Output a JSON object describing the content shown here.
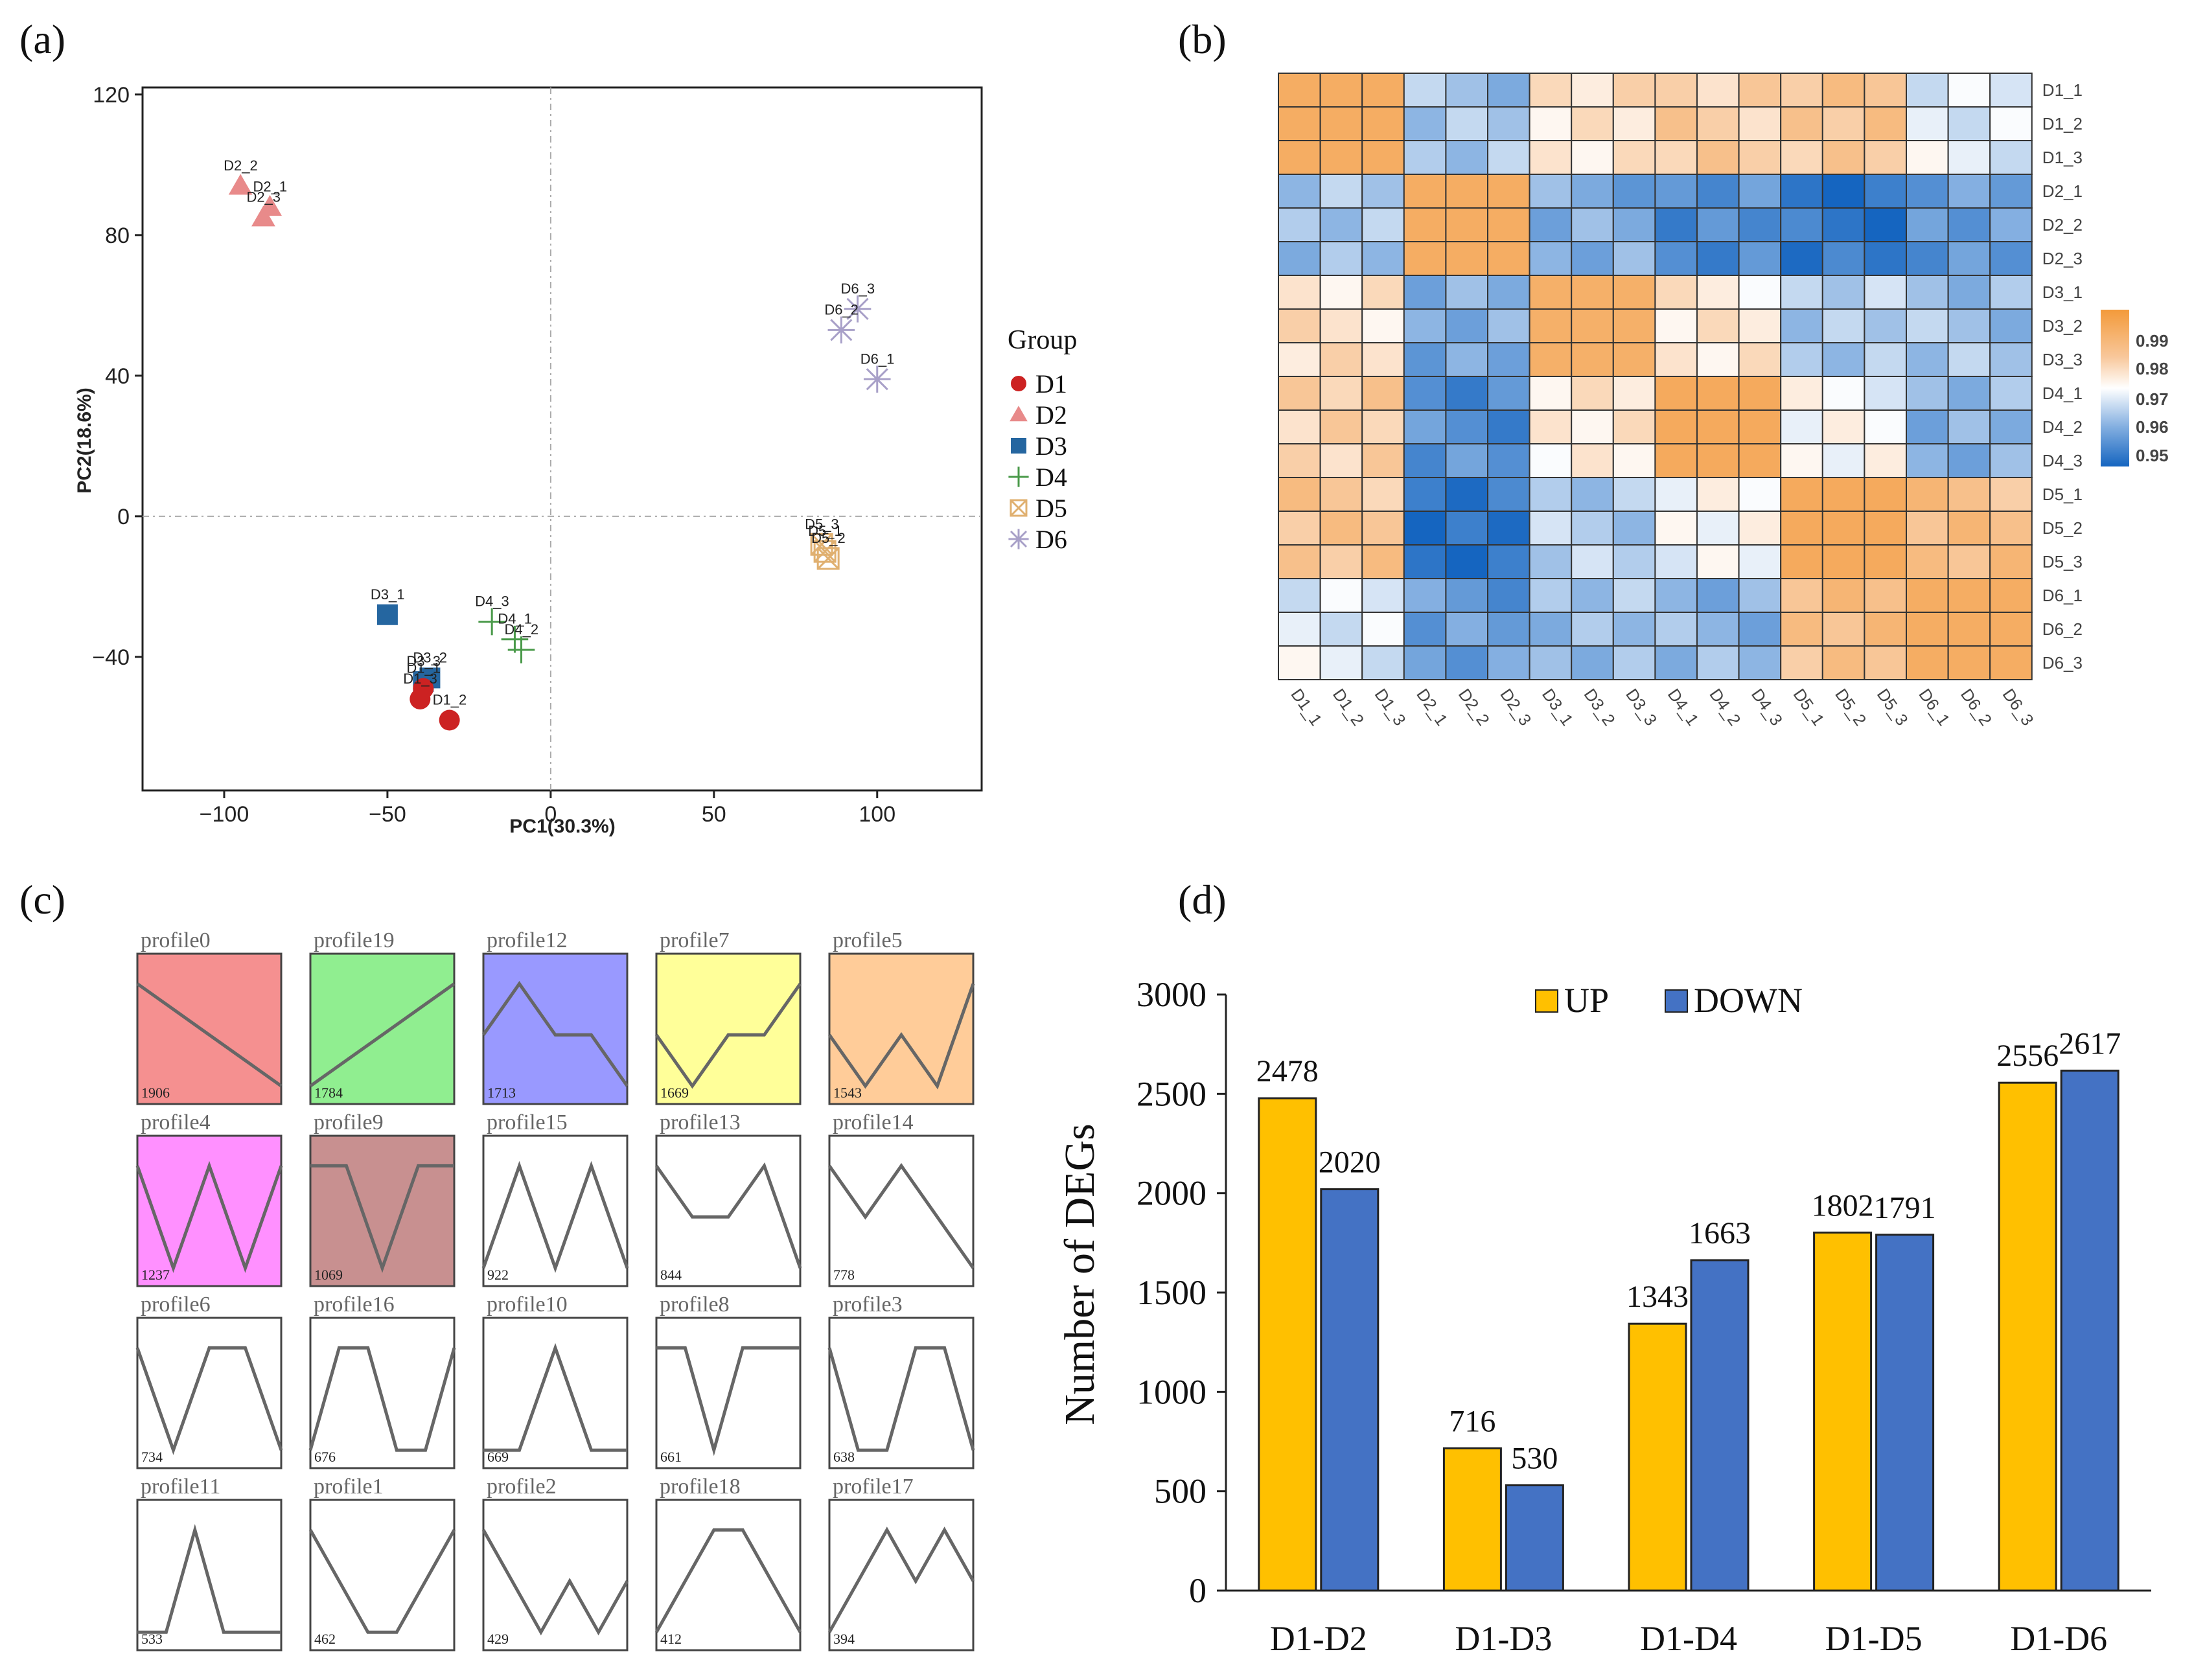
{
  "labels": {
    "a": "(a)",
    "b": "(b)",
    "c": "(c)",
    "d": "(d)"
  },
  "chart_data": [
    {
      "id": "a",
      "type": "scatter",
      "xlabel": "PC1(30.3%)",
      "ylabel": "PC2(18.6%)",
      "xlim": [
        -125,
        132
      ],
      "ylim": [
        -78,
        122
      ],
      "xticks": [
        -100,
        -50,
        0,
        50,
        100
      ],
      "yticks": [
        120,
        80,
        40,
        0,
        -40
      ],
      "xtick_labels": [
        "−100",
        "−50",
        "0",
        "50",
        "100"
      ],
      "ytick_labels": [
        "120",
        "80",
        "40",
        "0",
        "−40"
      ],
      "legend_title": "Group",
      "groups": [
        {
          "name": "D1",
          "color": "#cc2222",
          "marker": "circle"
        },
        {
          "name": "D2",
          "color": "#e88a8a",
          "marker": "triangle"
        },
        {
          "name": "D3",
          "color": "#2566a0",
          "marker": "square"
        },
        {
          "name": "D4",
          "color": "#4a9a4a",
          "marker": "plus"
        },
        {
          "name": "D5",
          "color": "#e0b070",
          "marker": "boxx"
        },
        {
          "name": "D6",
          "color": "#a8a0c8",
          "marker": "star"
        }
      ],
      "points": [
        {
          "label": "D2_2",
          "group": "D2",
          "x": -95,
          "y": 94
        },
        {
          "label": "D2_1",
          "group": "D2",
          "x": -86,
          "y": 88
        },
        {
          "label": "D2_3",
          "group": "D2",
          "x": -88,
          "y": 85
        },
        {
          "label": "D6_3",
          "group": "D6",
          "x": 94,
          "y": 59
        },
        {
          "label": "D6_2",
          "group": "D6",
          "x": 89,
          "y": 53
        },
        {
          "label": "D6_1",
          "group": "D6",
          "x": 100,
          "y": 39
        },
        {
          "label": "D5_3",
          "group": "D5",
          "x": 83,
          "y": -8
        },
        {
          "label": "D5_1",
          "group": "D5",
          "x": 84,
          "y": -10
        },
        {
          "label": "D5_2",
          "group": "D5",
          "x": 85,
          "y": -12
        },
        {
          "label": "D3_1",
          "group": "D3",
          "x": -50,
          "y": -28
        },
        {
          "label": "D4_3",
          "group": "D4",
          "x": -18,
          "y": -30
        },
        {
          "label": "D4_1",
          "group": "D4",
          "x": -11,
          "y": -35
        },
        {
          "label": "D4_2",
          "group": "D4",
          "x": -9,
          "y": -38
        },
        {
          "label": "D3_2",
          "group": "D3",
          "x": -37,
          "y": -46
        },
        {
          "label": "D3_3",
          "group": "D3",
          "x": -39,
          "y": -47
        },
        {
          "label": "D1_1",
          "group": "D1",
          "x": -39,
          "y": -49
        },
        {
          "label": "D1_3",
          "group": "D1",
          "x": -40,
          "y": -52
        },
        {
          "label": "D1_2",
          "group": "D1",
          "x": -31,
          "y": -58
        }
      ]
    },
    {
      "id": "b",
      "type": "heatmap",
      "labels": [
        "D1_1",
        "D1_2",
        "D1_3",
        "D2_1",
        "D2_2",
        "D2_3",
        "D3_1",
        "D3_2",
        "D3_3",
        "D4_1",
        "D4_2",
        "D4_3",
        "D5_1",
        "D5_2",
        "D5_3",
        "D6_1",
        "D6_2",
        "D6_3"
      ],
      "colorbar_ticks": [
        "0.99",
        "0.98",
        "0.97",
        "0.96",
        "0.95"
      ],
      "color_range": [
        0.945,
        1.0
      ],
      "block_values": [
        [
          0.993,
          0.962,
          0.978,
          0.982,
          0.984,
          0.97
        ],
        [
          0.962,
          0.993,
          0.958,
          0.953,
          0.948,
          0.955
        ],
        [
          0.978,
          0.958,
          0.992,
          0.976,
          0.964,
          0.962
        ],
        [
          0.982,
          0.953,
          0.976,
          0.994,
          0.972,
          0.96
        ],
        [
          0.984,
          0.948,
          0.964,
          0.972,
          0.994,
          0.986
        ],
        [
          0.97,
          0.955,
          0.962,
          0.96,
          0.986,
          0.993
        ]
      ]
    },
    {
      "id": "c",
      "type": "line",
      "profiles": [
        {
          "name": "profile0",
          "count": "1906",
          "color": "#f59090",
          "values": [
            2,
            1.5,
            1,
            0.5,
            0
          ]
        },
        {
          "name": "profile19",
          "count": "1784",
          "color": "#90ee90",
          "values": [
            1,
            1.5,
            2,
            2.5,
            3
          ]
        },
        {
          "name": "profile12",
          "count": "1713",
          "color": "#9999ff",
          "values": [
            2,
            3,
            2,
            2,
            1
          ]
        },
        {
          "name": "profile7",
          "count": "1669",
          "color": "#ffff99",
          "values": [
            2,
            1,
            2,
            2,
            3
          ]
        },
        {
          "name": "profile5",
          "count": "1543",
          "color": "#ffcc99",
          "values": [
            2,
            1,
            2,
            1,
            3
          ]
        },
        {
          "name": "profile4",
          "count": "1237",
          "color": "#ff90ff",
          "values": [
            1,
            0,
            1,
            0,
            1
          ]
        },
        {
          "name": "profile9",
          "count": "1069",
          "color": "#c89090",
          "values": [
            2,
            2,
            1,
            2,
            2
          ]
        },
        {
          "name": "profile15",
          "count": "922",
          "color": "#ffffff",
          "values": [
            1,
            2,
            1,
            2,
            1
          ]
        },
        {
          "name": "profile13",
          "count": "844",
          "color": "#ffffff",
          "values": [
            2,
            1.5,
            1.5,
            2,
            1
          ]
        },
        {
          "name": "profile14",
          "count": "778",
          "color": "#ffffff",
          "values": [
            3,
            2,
            3,
            2,
            1
          ]
        },
        {
          "name": "profile6",
          "count": "734",
          "color": "#ffffff",
          "values": [
            1,
            0,
            1,
            1,
            0
          ]
        },
        {
          "name": "profile16",
          "count": "676",
          "color": "#ffffff",
          "values": [
            1,
            2,
            2,
            1,
            1,
            2
          ]
        },
        {
          "name": "profile10",
          "count": "669",
          "color": "#ffffff",
          "values": [
            1,
            1,
            2,
            1,
            1
          ]
        },
        {
          "name": "profile8",
          "count": "661",
          "color": "#ffffff",
          "values": [
            1,
            1,
            0,
            1,
            1,
            1
          ]
        },
        {
          "name": "profile3",
          "count": "638",
          "color": "#ffffff",
          "values": [
            1,
            0,
            0,
            1,
            1,
            0
          ]
        },
        {
          "name": "profile11",
          "count": "533",
          "color": "#ffffff",
          "values": [
            1,
            1,
            2,
            1,
            1,
            1
          ]
        },
        {
          "name": "profile1",
          "count": "462",
          "color": "#ffffff",
          "values": [
            2,
            1,
            0,
            0,
            1,
            2
          ]
        },
        {
          "name": "profile2",
          "count": "429",
          "color": "#ffffff",
          "values": [
            2,
            1,
            0,
            1,
            0,
            1
          ]
        },
        {
          "name": "profile18",
          "count": "412",
          "color": "#ffffff",
          "values": [
            1,
            2,
            3,
            3,
            2,
            1
          ]
        },
        {
          "name": "profile17",
          "count": "394",
          "color": "#ffffff",
          "values": [
            1,
            2,
            3,
            2,
            3,
            2
          ]
        }
      ]
    },
    {
      "id": "d",
      "type": "bar",
      "categories": [
        "D1-D2",
        "D1-D3",
        "D1-D4",
        "D1-D5",
        "D1-D6"
      ],
      "series": [
        {
          "name": "UP",
          "color": "#ffc000",
          "values": [
            2478,
            716,
            1343,
            1802,
            2556
          ]
        },
        {
          "name": "DOWN",
          "color": "#4472c4",
          "values": [
            2020,
            530,
            1663,
            1791,
            2617
          ]
        }
      ],
      "ylabel": "Number of DEGs",
      "ylim": [
        0,
        3000
      ],
      "yticks": [
        0,
        500,
        1000,
        1500,
        2000,
        2500,
        3000
      ]
    }
  ]
}
